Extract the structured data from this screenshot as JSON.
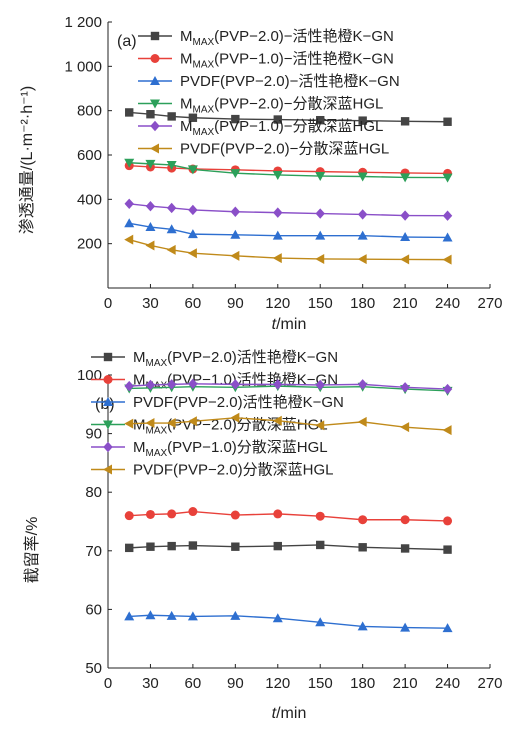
{
  "chart_data": [
    {
      "type": "line",
      "panel_label": "(a)",
      "xlabel_var": "t",
      "xlabel_unit": "/min",
      "ylabel": "渗透通量/(L·m⁻²·h⁻¹)",
      "xlim": [
        0,
        270
      ],
      "ylim": [
        0,
        1200
      ],
      "xticks": [
        0,
        30,
        60,
        90,
        120,
        150,
        180,
        210,
        240,
        270
      ],
      "yticks": [
        200,
        400,
        600,
        800,
        1000,
        1200
      ],
      "ytick_labels": [
        "200",
        "400",
        "600",
        "800",
        "1 000",
        "1 200"
      ],
      "x": [
        15,
        30,
        45,
        60,
        90,
        120,
        150,
        180,
        210,
        240
      ],
      "series": [
        {
          "name": "MMAX(PVP−2.0)−活性艳橙K−GN",
          "name_main": "M",
          "name_sub": "MAX",
          "name_rest": "(PVP−2.0)−活性艳橙K−GN",
          "color": "#444444",
          "marker": "square",
          "values": [
            792,
            784,
            774,
            768,
            762,
            760,
            757,
            755,
            752,
            750
          ]
        },
        {
          "name": "MMAX(PVP−1.0)−活性艳橙K−GN",
          "name_main": "M",
          "name_sub": "MAX",
          "name_rest": "(PVP−1.0)−活性艳橙K−GN",
          "color": "#e8413a",
          "marker": "circle",
          "values": [
            552,
            546,
            541,
            537,
            533,
            528,
            525,
            522,
            519,
            517
          ]
        },
        {
          "name": "PVDF(PVP−2.0)−活性艳橙K−GN",
          "name_main": "PVDF(PVP−2.0)−活性艳橙K−GN",
          "name_sub": "",
          "name_rest": "",
          "color": "#2e6fd0",
          "marker": "triangle-up",
          "values": [
            292,
            275,
            265,
            243,
            240,
            236,
            236,
            236,
            230,
            228
          ]
        },
        {
          "name": "MMAX(PVP−2.0)−分散深蓝HGL",
          "name_main": "M",
          "name_sub": "MAX",
          "name_rest": "(PVP−2.0)−分散深蓝HGL",
          "color": "#2ca05a",
          "marker": "triangle-down",
          "values": [
            565,
            560,
            555,
            535,
            518,
            510,
            505,
            503,
            499,
            498
          ]
        },
        {
          "name": "MMAX(PVP−1.0)−分散深蓝HGL",
          "name_main": "M",
          "name_sub": "MAX",
          "name_rest": "(PVP−1.0)−分散深蓝HGL",
          "color": "#8a4fc8",
          "marker": "diamond",
          "values": [
            380,
            369,
            361,
            352,
            344,
            340,
            336,
            332,
            327,
            326
          ]
        },
        {
          "name": "PVDF(PVP−2.0)−分散深蓝HGL",
          "name_main": "PVDF(PVP−2.0)−分散深蓝HGL",
          "name_sub": "",
          "name_rest": "",
          "color": "#c08a1a",
          "marker": "triangle-left",
          "values": [
            218,
            192,
            172,
            157,
            145,
            135,
            131,
            130,
            129,
            128
          ]
        }
      ]
    },
    {
      "type": "line",
      "panel_label": "(b)",
      "xlabel_var": "t",
      "xlabel_unit": "/min",
      "ylabel": "截留率/%",
      "xlim": [
        0,
        270
      ],
      "ylim": [
        50,
        100
      ],
      "xticks": [
        0,
        30,
        60,
        90,
        120,
        150,
        180,
        210,
        240,
        270
      ],
      "yticks": [
        50,
        60,
        70,
        80,
        90,
        100
      ],
      "ytick_labels": [
        "50",
        "60",
        "70",
        "80",
        "90",
        "100"
      ],
      "x": [
        15,
        30,
        45,
        60,
        90,
        120,
        150,
        180,
        210,
        240
      ],
      "series": [
        {
          "name": "MMAX(PVP−2.0)活性艳橙K−GN",
          "name_main": "M",
          "name_sub": "MAX",
          "name_rest": "(PVP−2.0)活性艳橙K−GN",
          "color": "#444444",
          "marker": "square",
          "values": [
            70.5,
            70.7,
            70.8,
            70.9,
            70.7,
            70.8,
            71.0,
            70.6,
            70.4,
            70.2
          ]
        },
        {
          "name": "MMAX(PVP−1.0)活性艳橙K−GN",
          "name_main": "M",
          "name_sub": "MAX",
          "name_rest": "(PVP−1.0)活性艳橙K−GN",
          "color": "#e8413a",
          "marker": "circle",
          "values": [
            76.0,
            76.2,
            76.3,
            76.7,
            76.1,
            76.3,
            75.9,
            75.3,
            75.3,
            75.1
          ]
        },
        {
          "name": "PVDF(PVP−2.0)活性艳橙K−GN",
          "name_main": "PVDF(PVP−2.0)活性艳橙K−GN",
          "name_sub": "",
          "name_rest": "",
          "color": "#2e6fd0",
          "marker": "triangle-up",
          "values": [
            58.8,
            59.0,
            58.9,
            58.8,
            58.9,
            58.5,
            57.8,
            57.1,
            56.9,
            56.8
          ]
        },
        {
          "name": "MMAX(PVP−2.0)分散深蓝HGL",
          "name_main": "M",
          "name_sub": "MAX",
          "name_rest": "(PVP−2.0)分散深蓝HGL",
          "color": "#2ca05a",
          "marker": "triangle-down",
          "values": [
            97.7,
            97.8,
            97.9,
            98.0,
            97.9,
            98.1,
            97.9,
            98.0,
            97.6,
            97.3
          ]
        },
        {
          "name": "MMAX(PVP−1.0)分散深蓝HGL",
          "name_main": "M",
          "name_sub": "MAX",
          "name_rest": "(PVP−1.0)分散深蓝HGL",
          "color": "#8a4fc8",
          "marker": "diamond",
          "values": [
            98.1,
            98.3,
            98.4,
            98.5,
            98.4,
            98.4,
            98.3,
            98.4,
            97.9,
            97.6
          ]
        },
        {
          "name": "PVDF(PVP−2.0)分散深蓝HGL",
          "name_main": "PVDF(PVP−2.0)分散深蓝HGL",
          "name_sub": "",
          "name_rest": "",
          "color": "#c08a1a",
          "marker": "triangle-left",
          "values": [
            91.7,
            91.8,
            91.8,
            92.1,
            92.7,
            92.2,
            91.4,
            92.0,
            91.1,
            90.6
          ]
        }
      ]
    }
  ]
}
